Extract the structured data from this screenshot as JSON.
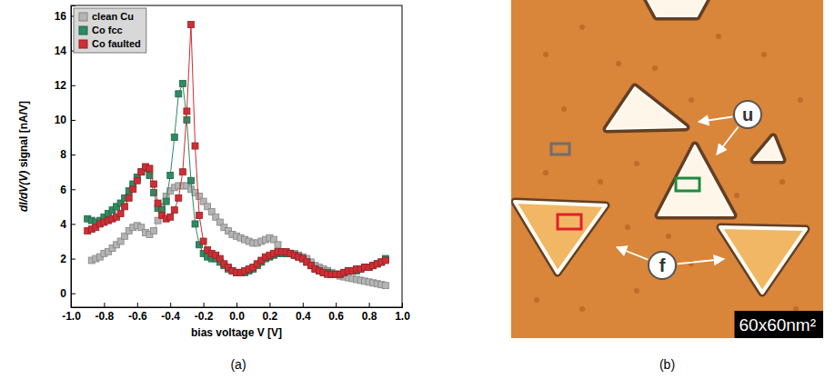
{
  "chart_data": {
    "type": "line",
    "caption": "(a)",
    "x_label": "bias voltage V [V]",
    "y_label": "dI/dV(V) signal [nA/V]",
    "xlim": [
      -1.0,
      1.0
    ],
    "ylim": [
      -0.8,
      16.6
    ],
    "xticks": [
      {
        "value": -1,
        "label": "-1.0"
      },
      -0.8,
      -0.6,
      -0.4,
      -0.2,
      {
        "value": 0,
        "label": "0.0"
      },
      0.2,
      0.4,
      0.6,
      0.8,
      {
        "value": 1,
        "label": "1.0"
      }
    ],
    "yticks": [
      0,
      2,
      4,
      6,
      8,
      10,
      12,
      14,
      16
    ],
    "grid": false,
    "legend": "upper left",
    "marker": "square",
    "line_style": "solid",
    "x": [
      -0.9,
      -0.875,
      -0.85,
      -0.825,
      -0.8,
      -0.775,
      -0.75,
      -0.725,
      -0.7,
      -0.675,
      -0.65,
      -0.625,
      -0.6,
      -0.575,
      -0.55,
      -0.525,
      -0.5,
      -0.475,
      -0.45,
      -0.425,
      -0.4,
      -0.375,
      -0.35,
      -0.325,
      -0.3,
      -0.275,
      -0.25,
      -0.225,
      -0.2,
      -0.175,
      -0.15,
      -0.125,
      -0.1,
      -0.075,
      -0.05,
      -0.025,
      0,
      0.025,
      0.05,
      0.075,
      0.1,
      0.125,
      0.15,
      0.175,
      0.2,
      0.225,
      0.25,
      0.275,
      0.3,
      0.325,
      0.35,
      0.375,
      0.4,
      0.425,
      0.45,
      0.475,
      0.5,
      0.525,
      0.55,
      0.575,
      0.6,
      0.625,
      0.65,
      0.675,
      0.7,
      0.725,
      0.75,
      0.775,
      0.8,
      0.825,
      0.85,
      0.875,
      0.9
    ],
    "series": [
      {
        "name": "clean Cu",
        "color": "#b4b4b4",
        "values": [
          null,
          1.9,
          2.0,
          2.1,
          2.3,
          2.4,
          2.6,
          2.8,
          3.0,
          3.3,
          3.6,
          3.8,
          3.9,
          3.8,
          3.5,
          3.4,
          3.6,
          4.2,
          5.0,
          5.6,
          5.9,
          6.1,
          6.2,
          6.2,
          6.2,
          6.0,
          5.8,
          5.6,
          5.3,
          5.0,
          4.7,
          4.4,
          4.1,
          3.8,
          3.6,
          3.4,
          3.3,
          3.2,
          3.1,
          3.0,
          2.9,
          2.9,
          3.0,
          3.1,
          3.2,
          3.1,
          2.8,
          2.4,
          2.3,
          2.3,
          2.3,
          2.2,
          2.1,
          2.0,
          1.8,
          1.6,
          1.5,
          1.4,
          1.3,
          1.2,
          1.1,
          1.0,
          0.95,
          0.9,
          0.85,
          0.8,
          0.75,
          0.7,
          0.65,
          0.6,
          0.55,
          0.5,
          0.45
        ]
      },
      {
        "name": "Co fcc",
        "color": "#2e8a62",
        "values": [
          4.3,
          4.2,
          4.1,
          4.2,
          4.4,
          4.6,
          4.8,
          5.0,
          5.2,
          5.5,
          5.9,
          6.3,
          6.7,
          7.0,
          7.2,
          6.8,
          5.8,
          4.9,
          4.8,
          5.3,
          6.8,
          9.0,
          11.5,
          12.1,
          10.0,
          6.5,
          4.0,
          2.8,
          2.3,
          2.1,
          2.0,
          2.0,
          1.8,
          1.6,
          1.4,
          1.3,
          1.2,
          1.2,
          1.2,
          1.3,
          1.4,
          1.6,
          1.8,
          2.0,
          2.1,
          2.2,
          2.3,
          2.3,
          2.3,
          2.3,
          2.2,
          2.1,
          2.0,
          1.8,
          1.6,
          1.4,
          1.3,
          1.2,
          1.2,
          1.1,
          1.1,
          1.1,
          1.2,
          1.3,
          1.3,
          1.3,
          1.4,
          1.5,
          1.5,
          1.6,
          1.7,
          1.8,
          2.0
        ]
      },
      {
        "name": "Co faulted",
        "color": "#cc2f35",
        "values": [
          3.6,
          3.7,
          3.8,
          4.0,
          4.1,
          4.2,
          4.3,
          4.4,
          4.6,
          5.0,
          5.5,
          6.0,
          6.5,
          7.0,
          7.3,
          7.2,
          6.3,
          5.2,
          4.5,
          4.3,
          4.4,
          4.8,
          5.5,
          7.0,
          10.5,
          15.5,
          8.5,
          4.5,
          3.0,
          2.5,
          2.3,
          2.2,
          2.0,
          1.7,
          1.5,
          1.3,
          1.2,
          1.2,
          1.3,
          1.4,
          1.5,
          1.7,
          1.9,
          2.1,
          2.2,
          2.3,
          2.4,
          2.4,
          2.4,
          2.3,
          2.2,
          2.1,
          2.0,
          1.8,
          1.6,
          1.4,
          1.3,
          1.2,
          1.1,
          1.1,
          1.1,
          1.1,
          1.2,
          1.3,
          1.3,
          1.4,
          1.4,
          1.5,
          1.5,
          1.6,
          1.7,
          1.8,
          1.9
        ]
      }
    ]
  },
  "image": {
    "caption": "(b)",
    "scale_bar": "60x60nm²",
    "markers": [
      "u",
      "f"
    ]
  }
}
